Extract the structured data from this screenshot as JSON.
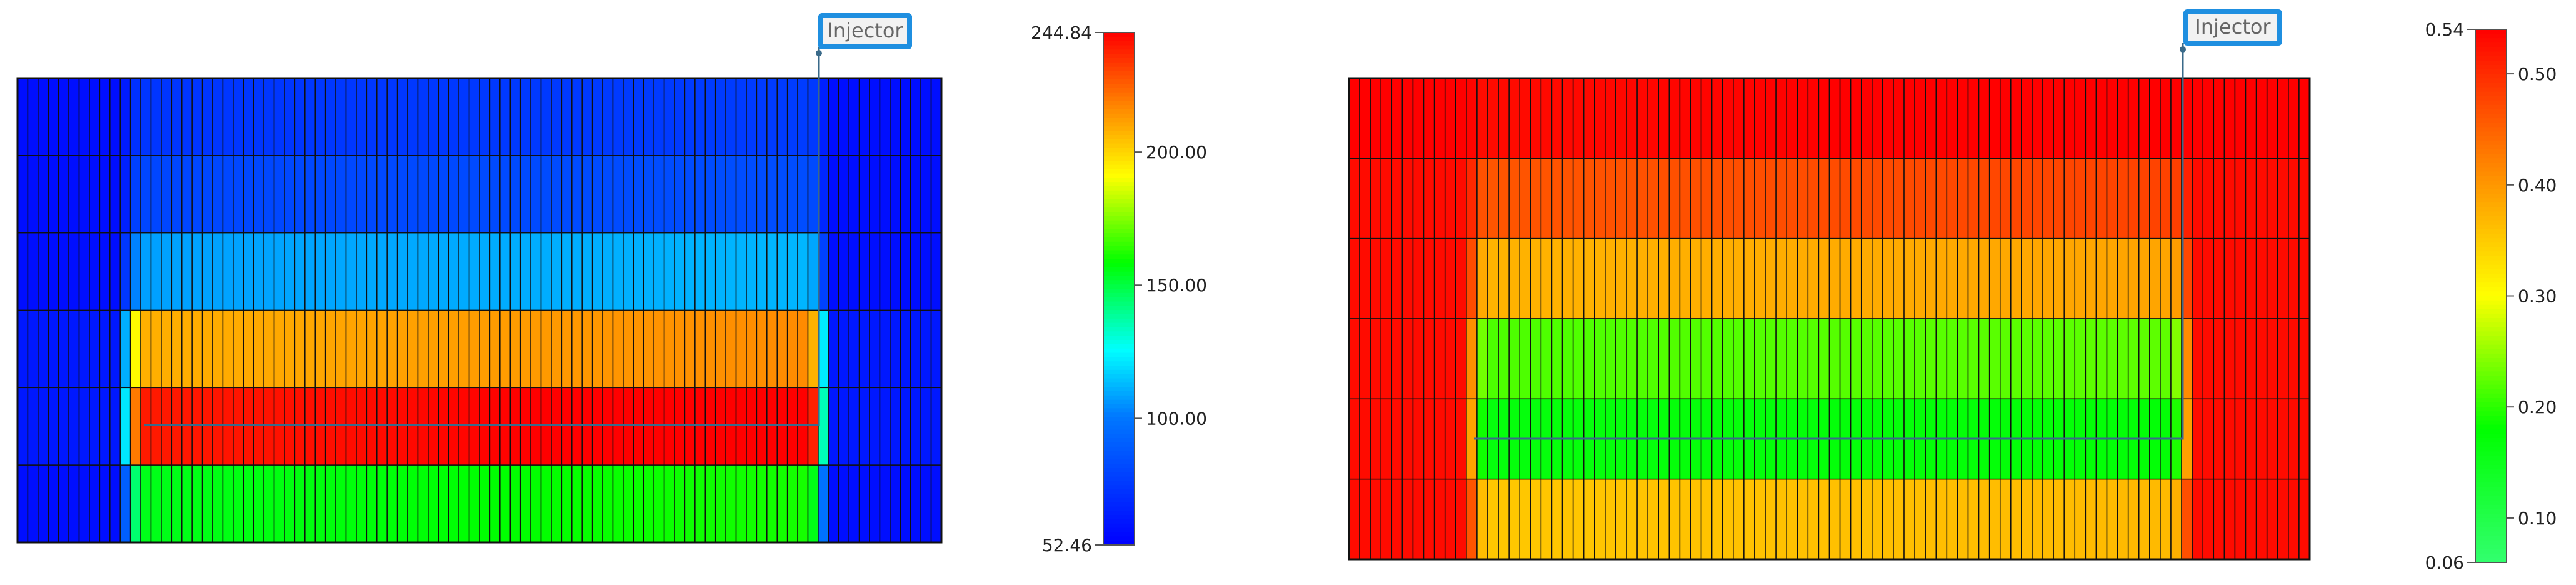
{
  "panels": [
    {
      "id": "left",
      "well_label": "Injector",
      "colorbar": {
        "min_label": "52.46",
        "max_label": "244.84",
        "tick_labels": [
          "200.00",
          "150.00",
          "100.00"
        ],
        "tick_values": [
          200,
          150,
          100
        ],
        "min": 52.46,
        "max": 244.84,
        "colormap": "jet"
      },
      "grid": {
        "columns": 90,
        "rows": 6,
        "layer_values": [
          {
            "outer": 58,
            "inner": 75
          },
          {
            "outer": 58,
            "inner": 82
          },
          {
            "outer": 58,
            "inner": 110
          },
          {
            "outer": 62,
            "inner": 212
          },
          {
            "outer": 62,
            "inner": 244
          },
          {
            "outer": 58,
            "inner": 158
          }
        ]
      }
    },
    {
      "id": "right",
      "well_label": "Injector",
      "colorbar": {
        "min_label": "0.06",
        "max_label": "0.54",
        "tick_labels": [
          "0.50",
          "0.40",
          "0.30",
          "0.20",
          "0.10"
        ],
        "tick_values": [
          0.5,
          0.4,
          0.3,
          0.2,
          0.1
        ],
        "min": 0.06,
        "max": 0.54,
        "colormap": "green-red"
      },
      "grid": {
        "columns": 90,
        "rows": 6,
        "layer_values": [
          {
            "outer": 0.54,
            "inner": 0.54
          },
          {
            "outer": 0.53,
            "inner": 0.47
          },
          {
            "outer": 0.53,
            "inner": 0.38
          },
          {
            "outer": 0.53,
            "inner": 0.22
          },
          {
            "outer": 0.53,
            "inner": 0.17
          },
          {
            "outer": 0.53,
            "inner": 0.36
          }
        ]
      }
    }
  ],
  "colors": {
    "grid_line": "#111111",
    "label_border": "#1f8fe0",
    "label_fill": "#f2f2f2",
    "label_text": "#666666",
    "well_line": "#3a6a8a"
  }
}
